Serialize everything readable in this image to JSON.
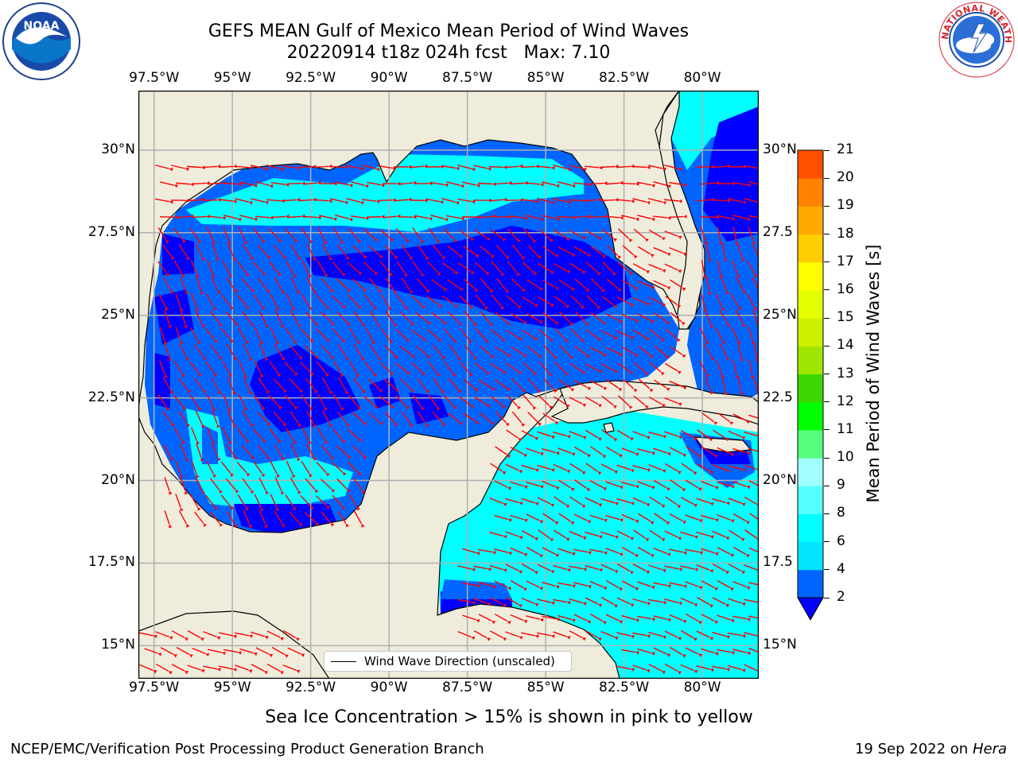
{
  "title": {
    "line1": "GEFS MEAN Gulf of Mexico Mean Period of Wind Waves",
    "line2": "20220914 t18z 024h fcst   Max: 7.10"
  },
  "logos": {
    "noaa": {
      "icon": "noaa-logo",
      "text": "NOAA"
    },
    "nws": {
      "icon": "nws-logo",
      "text": "NATIONAL WEATHER SERVICE"
    }
  },
  "map": {
    "lon_ticks": [
      "97.5°W",
      "95°W",
      "92.5°W",
      "90°W",
      "87.5°W",
      "85°W",
      "82.5°W",
      "80°W"
    ],
    "lon_values": [
      -97.5,
      -95,
      -92.5,
      -90,
      -87.5,
      -85,
      -82.5,
      -80
    ],
    "lat_ticks_left": [
      "30°N",
      "27.5°N",
      "25°N",
      "22.5°N",
      "20°N",
      "17.5°N",
      "15°N"
    ],
    "lat_ticks_right": [
      "30°N",
      "27.5",
      "25°N",
      "22.5",
      "20°N",
      "17.5",
      "15°N"
    ],
    "lat_values": [
      30,
      27.5,
      25,
      22.5,
      20,
      17.5,
      15
    ],
    "extent": {
      "lon_min": -98,
      "lon_max": -78.2,
      "lat_min": 14,
      "lat_max": 31.8
    },
    "land_color": "#efecdc",
    "arrow_color": "#ff0000"
  },
  "legend": {
    "label": "Wind Wave Direction (unscaled)"
  },
  "colorbar": {
    "label": "Mean Period of Wind Waves [s]",
    "ticks": [
      "2",
      "4",
      "6",
      "8",
      "9",
      "10",
      "11",
      "12",
      "13",
      "14",
      "15",
      "16",
      "17",
      "18",
      "19",
      "20",
      "21"
    ],
    "colors": [
      "#0065ff",
      "#00e4ff",
      "#00ffff",
      "#55ffff",
      "#a0ffff",
      "#55ff7d",
      "#00ff00",
      "#3cd700",
      "#a0e600",
      "#cdf000",
      "#e6ff00",
      "#ffff00",
      "#ffcd00",
      "#ffaa00",
      "#ff8200",
      "#ff5000",
      "#ff0000"
    ],
    "under_color": "#0000ff"
  },
  "notes": {
    "sea_ice": "Sea Ice Concentration > 15% is shown in pink to yellow",
    "left": "NCEP/EMC/Verification Post Processing Product Generation Branch",
    "right_date": "19 Sep 2022 on",
    "right_host": "Hera"
  }
}
